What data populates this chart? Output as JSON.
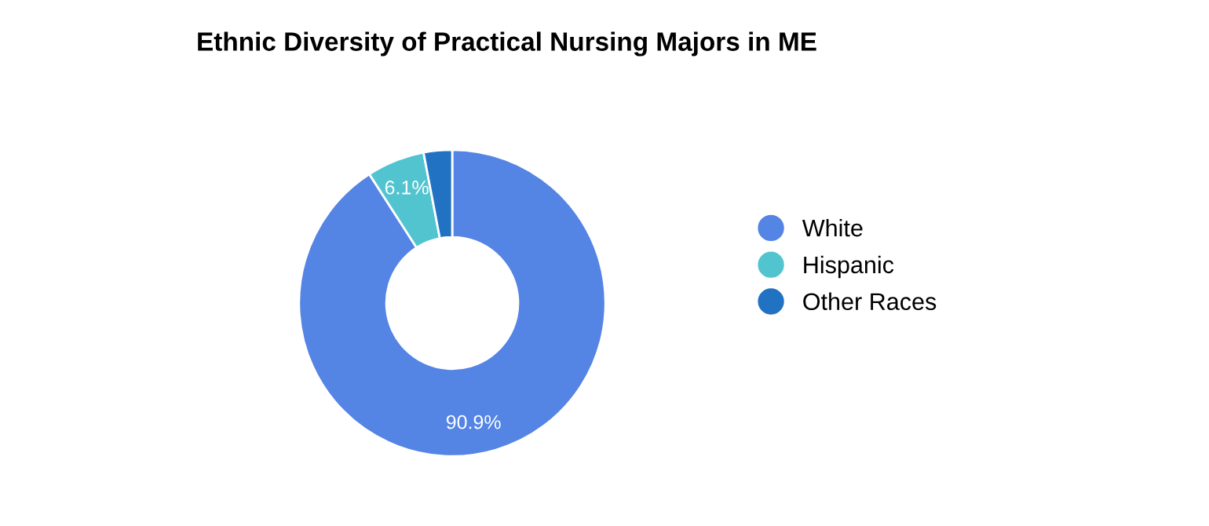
{
  "chart_data": {
    "type": "donut",
    "title": "Ethnic Diversity of Practical Nursing Majors in ME",
    "categories": [
      "White",
      "Hispanic",
      "Other Races"
    ],
    "values": [
      90.9,
      6.1,
      3.0
    ],
    "colors": [
      "#5484e4",
      "#52c4cf",
      "#2272c3"
    ],
    "value_labels": [
      "90.9%",
      "6.1%",
      null
    ],
    "legend": "right"
  }
}
